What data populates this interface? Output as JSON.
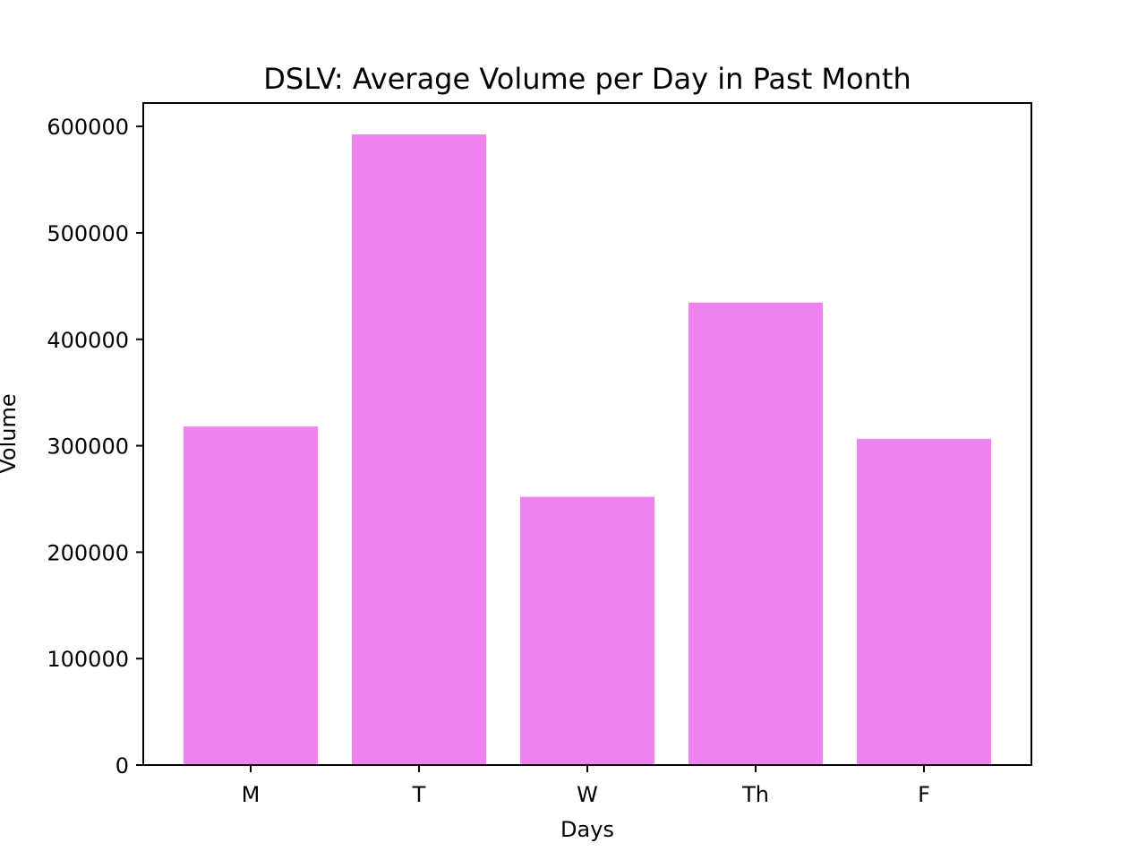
{
  "chart_data": {
    "type": "bar",
    "title": "DSLV: Average Volume per Day in Past Month",
    "xlabel": "Days",
    "ylabel": "Volume",
    "categories": [
      "M",
      "T",
      "W",
      "Th",
      "F"
    ],
    "values": [
      318000,
      592500,
      252000,
      434500,
      306500
    ],
    "ylim": [
      0,
      622000
    ],
    "yticks": [
      0,
      100000,
      200000,
      300000,
      400000,
      500000,
      600000
    ],
    "ytick_labels": [
      "0",
      "100000",
      "200000",
      "300000",
      "400000",
      "500000",
      "600000"
    ],
    "bar_color": "#ee82ee",
    "grid": false,
    "legend": "none"
  }
}
